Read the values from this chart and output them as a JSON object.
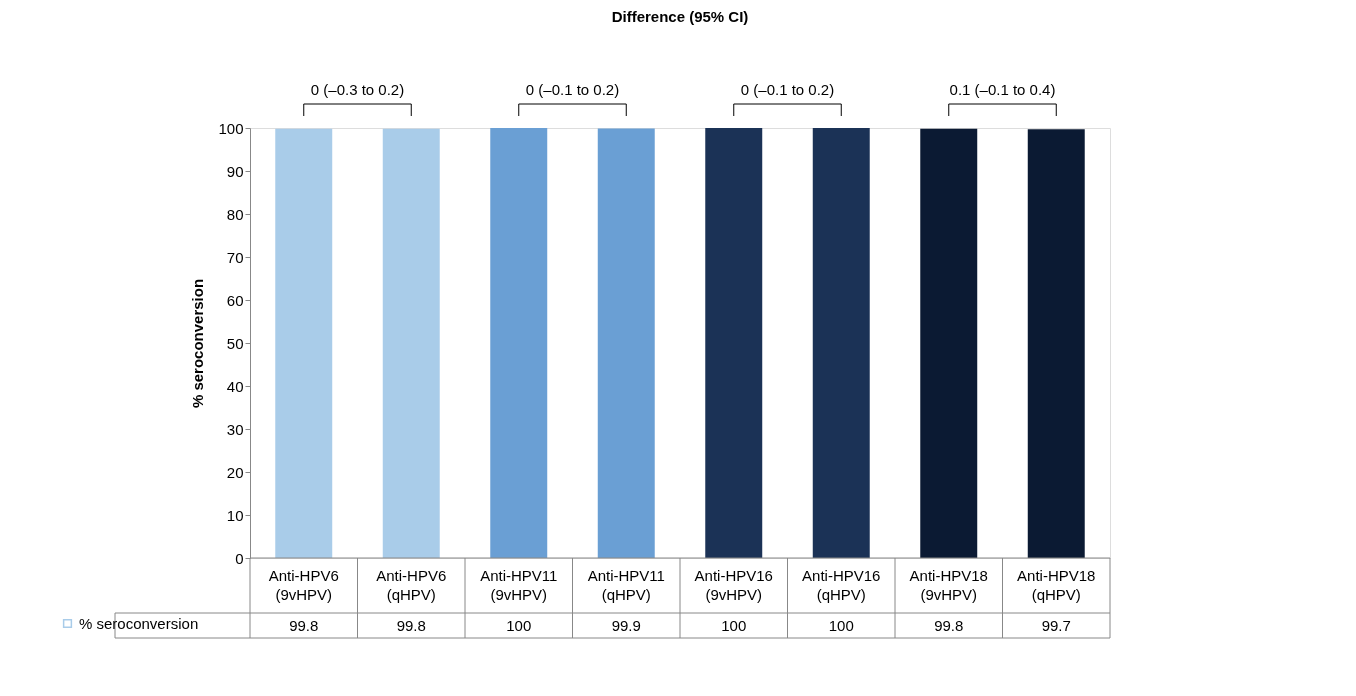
{
  "chart_data": {
    "type": "bar",
    "title": "Difference (95% CI)",
    "ylabel": "% seroconversion",
    "categories": [
      "Anti-HPV6\n(9vHPV)",
      "Anti-HPV6\n(qHPV)",
      "Anti-HPV11\n(9vHPV)",
      "Anti-HPV11\n(qHPV)",
      "Anti-HPV16\n(9vHPV)",
      "Anti-HPV16\n(qHPV)",
      "Anti-HPV18\n(9vHPV)",
      "Anti-HPV18\n(qHPV)"
    ],
    "series": [
      {
        "name": "% seroconversion",
        "values": [
          99.8,
          99.8,
          100,
          99.9,
          100,
          100,
          99.8,
          99.7
        ]
      }
    ],
    "colors": [
      "#a9cce9",
      "#a9cce9",
      "#6a9fd4",
      "#6a9fd4",
      "#1b3256",
      "#1b3256",
      "#0b1a33",
      "#0b1a33"
    ],
    "annotations": [
      "0 (–0.3 to 0.2)",
      "0 (–0.1 to 0.2)",
      "0 (–0.1 to 0.2)",
      "0.1 (–0.1 to 0.4)"
    ],
    "ylim": [
      0,
      100
    ],
    "yticks": [
      0,
      10,
      20,
      30,
      40,
      50,
      60,
      70,
      80,
      90,
      100
    ],
    "data_labels": true,
    "legend": "bottom left",
    "grid": false
  }
}
